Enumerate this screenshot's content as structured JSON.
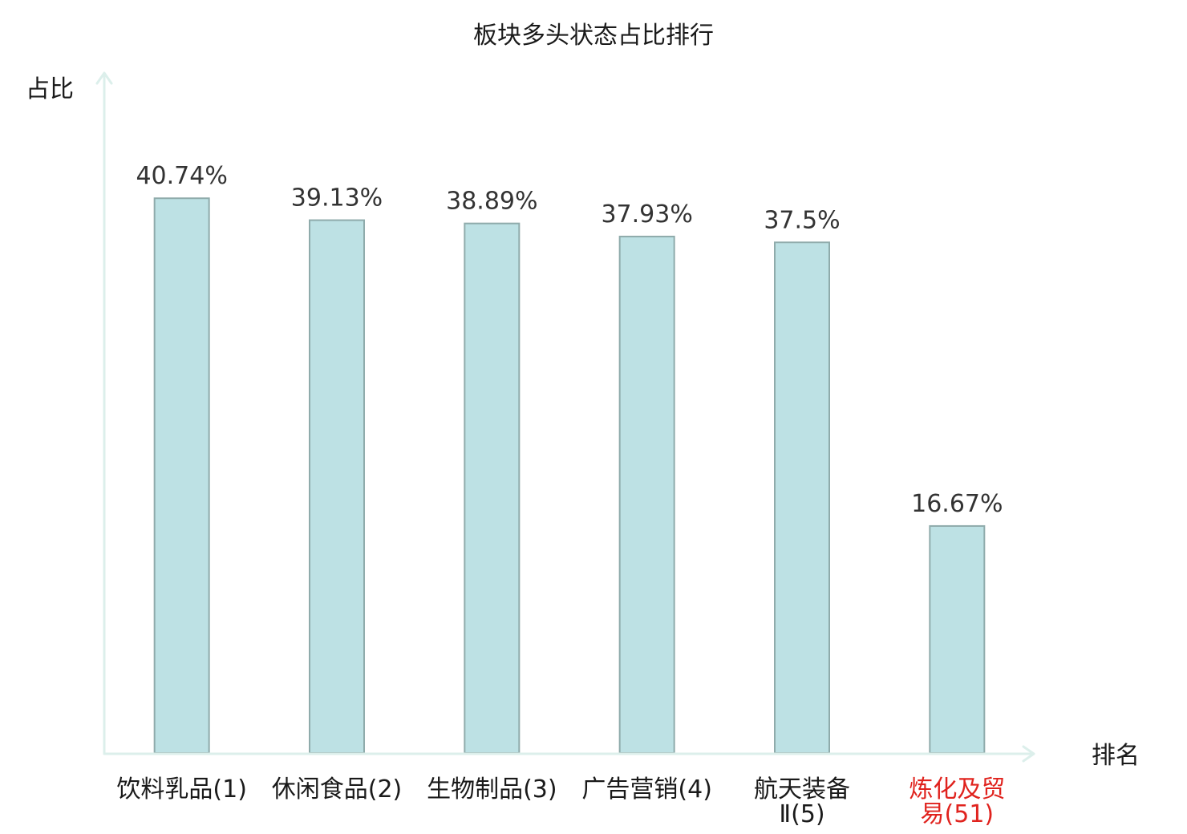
{
  "chart_data": {
    "type": "bar",
    "title": "板块多头状态占比排行",
    "xlabel": "排名",
    "ylabel": "占比",
    "categories": [
      "饮料乳品(1)",
      "休闲食品(2)",
      "生物制品(3)",
      "广告营销(4)",
      "航天装备Ⅱ(5)",
      "炼化及贸易(51)"
    ],
    "values": [
      40.74,
      39.13,
      38.89,
      37.93,
      37.5,
      16.67
    ],
    "unit": "%",
    "ylim": [
      0,
      50
    ],
    "grid": false,
    "highlight_index": 5
  },
  "colors": {
    "bar_fill": "#bde1e4",
    "bar_stroke": "#8fabab",
    "axis": "#dcefeb",
    "text": "#333333",
    "label": "#1a1a1a",
    "highlight": "#e0231e"
  }
}
